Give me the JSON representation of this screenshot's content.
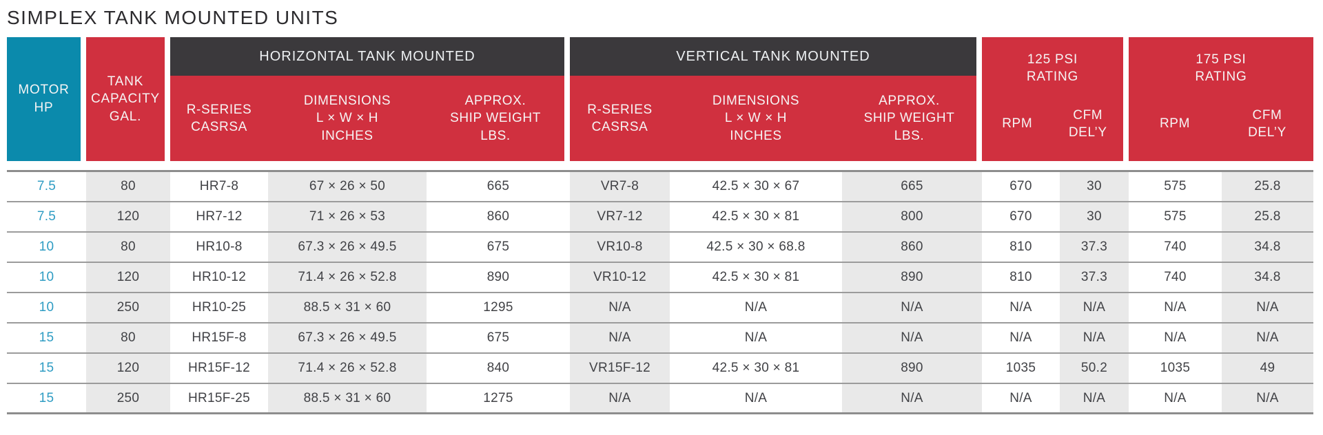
{
  "title": "SIMPLEX TANK MOUNTED UNITS",
  "colors": {
    "accent_teal": "#0b8aac",
    "brand_red": "#d0303f",
    "header_dark_gray": "#3b393c",
    "stripe_gray": "#e9e9e9",
    "motor_hp_text": "#2e9cc3"
  },
  "table": {
    "header": {
      "motor_hp": "MOTOR\nHP",
      "tank_capacity": "TANK\nCAPACITY\nGAL.",
      "horizontal_group": "HORIZONTAL TANK MOUNTED",
      "vertical_group": "VERTICAL TANK MOUNTED",
      "psi_125": "125 PSI\nRATING",
      "psi_175": "175 PSI\nRATING",
      "sub_r_series": "R-SERIES\nCASRSA",
      "sub_dimensions": "DIMENSIONS\nL × W × H\nINCHES",
      "sub_ship_weight": "APPROX.\nSHIP WEIGHT\nLBS.",
      "sub_rpm": "RPM",
      "sub_cfm": "CFM\nDEL’Y"
    },
    "rows": [
      [
        "7.5",
        "80",
        "HR7-8",
        "67 × 26 × 50",
        "665",
        "VR7-8",
        "42.5 × 30 × 67",
        "665",
        "670",
        "30",
        "575",
        "25.8"
      ],
      [
        "7.5",
        "120",
        "HR7-12",
        "71 × 26 × 53",
        "860",
        "VR7-12",
        "42.5 × 30 × 81",
        "800",
        "670",
        "30",
        "575",
        "25.8"
      ],
      [
        "10",
        "80",
        "HR10-8",
        "67.3 × 26 × 49.5",
        "675",
        "VR10-8",
        "42.5 × 30 × 68.8",
        "860",
        "810",
        "37.3",
        "740",
        "34.8"
      ],
      [
        "10",
        "120",
        "HR10-12",
        "71.4 × 26 × 52.8",
        "890",
        "VR10-12",
        "42.5 × 30 × 81",
        "890",
        "810",
        "37.3",
        "740",
        "34.8"
      ],
      [
        "10",
        "250",
        "HR10-25",
        "88.5 × 31 × 60",
        "1295",
        "N/A",
        "N/A",
        "N/A",
        "N/A",
        "N/A",
        "N/A",
        "N/A"
      ],
      [
        "15",
        "80",
        "HR15F-8",
        "67.3 × 26 × 49.5",
        "675",
        "N/A",
        "N/A",
        "N/A",
        "N/A",
        "N/A",
        "N/A",
        "N/A"
      ],
      [
        "15",
        "120",
        "HR15F-12",
        "71.4 × 26 × 52.8",
        "840",
        "VR15F-12",
        "42.5 × 30 × 81",
        "890",
        "1035",
        "50.2",
        "1035",
        "49"
      ],
      [
        "15",
        "250",
        "HR15F-25",
        "88.5 × 31 × 60",
        "1275",
        "N/A",
        "N/A",
        "N/A",
        "N/A",
        "N/A",
        "N/A",
        "N/A"
      ]
    ]
  }
}
